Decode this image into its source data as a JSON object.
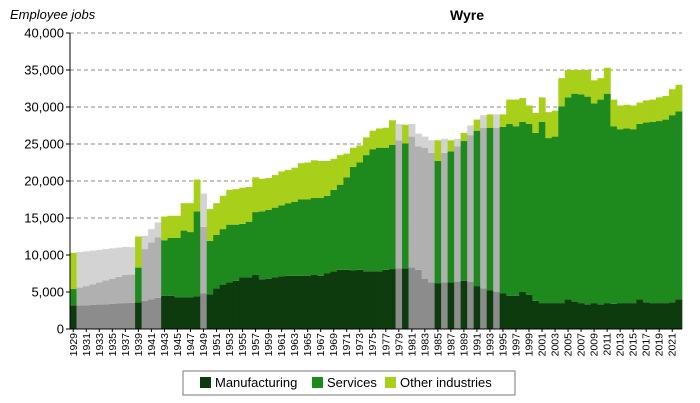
{
  "chart_data": {
    "type": "bar",
    "stacked": true,
    "title": "Wyre",
    "ylabel": "Employee jobs",
    "ylim": [
      0,
      40000
    ],
    "yticks": [
      0,
      5000,
      10000,
      15000,
      20000,
      25000,
      30000,
      35000,
      40000
    ],
    "ytick_labels": [
      "0",
      "5,000",
      "10,000",
      "15,000",
      "20,000",
      "25,000",
      "30,000",
      "35,000",
      "40,000"
    ],
    "grid": "horizontal-dashed",
    "legend": "bottom",
    "x": [
      1929,
      1930,
      1931,
      1932,
      1933,
      1934,
      1935,
      1936,
      1937,
      1938,
      1939,
      1940,
      1941,
      1942,
      1943,
      1944,
      1945,
      1946,
      1947,
      1948,
      1949,
      1950,
      1951,
      1952,
      1953,
      1954,
      1955,
      1956,
      1957,
      1958,
      1959,
      1960,
      1961,
      1962,
      1963,
      1964,
      1965,
      1966,
      1967,
      1968,
      1969,
      1970,
      1971,
      1972,
      1973,
      1974,
      1975,
      1976,
      1977,
      1978,
      1979,
      1980,
      1981,
      1982,
      1983,
      1984,
      1985,
      1986,
      1987,
      1988,
      1989,
      1990,
      1991,
      1992,
      1993,
      1994,
      1995,
      1996,
      1997,
      1998,
      1999,
      2000,
      2001,
      2002,
      2003,
      2004,
      2005,
      2006,
      2007,
      2008,
      2009,
      2010,
      2011,
      2012,
      2013,
      2014,
      2015,
      2016,
      2017,
      2018,
      2019,
      2020,
      2021,
      2022
    ],
    "x_tick_labels": [
      "1929",
      "1931",
      "1933",
      "1935",
      "1937",
      "1939",
      "1941",
      "1943",
      "1945",
      "1947",
      "1949",
      "1951",
      "1953",
      "1955",
      "1957",
      "1959",
      "1961",
      "1963",
      "1965",
      "1967",
      "1969",
      "1971",
      "1973",
      "1975",
      "1977",
      "1979",
      "1981",
      "1983",
      "1985",
      "1987",
      "1989",
      "1991",
      "1993",
      "1995",
      "1997",
      "1999",
      "2001",
      "2003",
      "2005",
      "2007",
      "2009",
      "2011",
      "2013",
      "2015",
      "2017",
      "2019",
      "2021"
    ],
    "estimated_years": [
      1930,
      1931,
      1932,
      1933,
      1934,
      1935,
      1936,
      1937,
      1938,
      1940,
      1941,
      1942,
      1949,
      1979,
      1981,
      1982,
      1983,
      1984,
      1986,
      1988,
      1990,
      1992,
      1994
    ],
    "series": [
      {
        "name": "Manufacturing",
        "color": "#0d3b0d",
        "estimated_color": "#8c8c8c",
        "values": [
          3200,
          3200,
          3200,
          3250,
          3300,
          3350,
          3400,
          3450,
          3500,
          3550,
          3600,
          3800,
          4000,
          4200,
          4500,
          4500,
          4300,
          4300,
          4300,
          4400,
          4800,
          4700,
          5500,
          6000,
          6300,
          6500,
          7000,
          7000,
          7300,
          6700,
          6800,
          7000,
          7100,
          7200,
          7200,
          7200,
          7200,
          7300,
          7200,
          7500,
          7800,
          8000,
          8000,
          7900,
          8000,
          7800,
          7800,
          7800,
          8000,
          8100,
          8200,
          8200,
          8300,
          8000,
          6800,
          6300,
          6200,
          6300,
          6300,
          6400,
          6500,
          6400,
          5800,
          5500,
          5200,
          5000,
          4800,
          4500,
          4500,
          5000,
          4600,
          3800,
          3500,
          3500,
          3500,
          3500,
          4000,
          3700,
          3500,
          3300,
          3500,
          3300,
          3500,
          3400,
          3500,
          3500,
          3500,
          4000,
          3600,
          3500,
          3500,
          3500,
          3600,
          4000
        ]
      },
      {
        "name": "Services",
        "color": "#1e8a1e",
        "estimated_color": "#b0b0b0",
        "values": [
          2200,
          2400,
          2600,
          2800,
          3000,
          3200,
          3400,
          3600,
          3800,
          3800,
          4700,
          7000,
          7700,
          8200,
          7500,
          7800,
          8000,
          9000,
          8800,
          11500,
          9000,
          7200,
          7200,
          7500,
          7800,
          7600,
          7200,
          7500,
          8500,
          9200,
          9300,
          9400,
          9600,
          9800,
          10000,
          10300,
          10300,
          10400,
          10500,
          10500,
          11000,
          11500,
          12500,
          14000,
          14500,
          15700,
          16500,
          16700,
          16500,
          16800,
          17300,
          16900,
          17700,
          16700,
          17700,
          17500,
          16500,
          17500,
          17700,
          18300,
          18900,
          19800,
          21000,
          21700,
          22000,
          22200,
          22500,
          23200,
          22900,
          23000,
          23100,
          22700,
          24500,
          22300,
          22500,
          26600,
          27300,
          28100,
          28200,
          28100,
          27000,
          27700,
          28300,
          24000,
          23500,
          23600,
          23500,
          23700,
          24300,
          24500,
          24600,
          24800,
          25300,
          25400
        ]
      },
      {
        "name": "Other industries",
        "color": "#a8cf1a",
        "estimated_color": "#d3d3d3",
        "values": [
          4900,
          4800,
          4700,
          4550,
          4400,
          4250,
          4100,
          3950,
          3800,
          3700,
          4200,
          1800,
          1800,
          2000,
          3200,
          3000,
          3000,
          3700,
          3900,
          4300,
          4500,
          4300,
          4300,
          4500,
          4700,
          4800,
          4900,
          4700,
          4700,
          4400,
          4300,
          4400,
          4600,
          4500,
          4600,
          4900,
          5000,
          5100,
          5000,
          4700,
          4200,
          4000,
          3200,
          2600,
          2300,
          2400,
          2500,
          2600,
          2700,
          3300,
          2200,
          2500,
          1700,
          1700,
          1500,
          1700,
          2800,
          1900,
          1500,
          1000,
          1100,
          1300,
          1500,
          1700,
          1800,
          1800,
          1700,
          3300,
          3600,
          3200,
          2500,
          2700,
          3300,
          3500,
          3500,
          3800,
          3700,
          3200,
          3300,
          3600,
          3100,
          2900,
          3500,
          3600,
          3200,
          3200,
          3200,
          2900,
          3000,
          3000,
          3200,
          3200,
          3500,
          3600
        ]
      }
    ]
  }
}
